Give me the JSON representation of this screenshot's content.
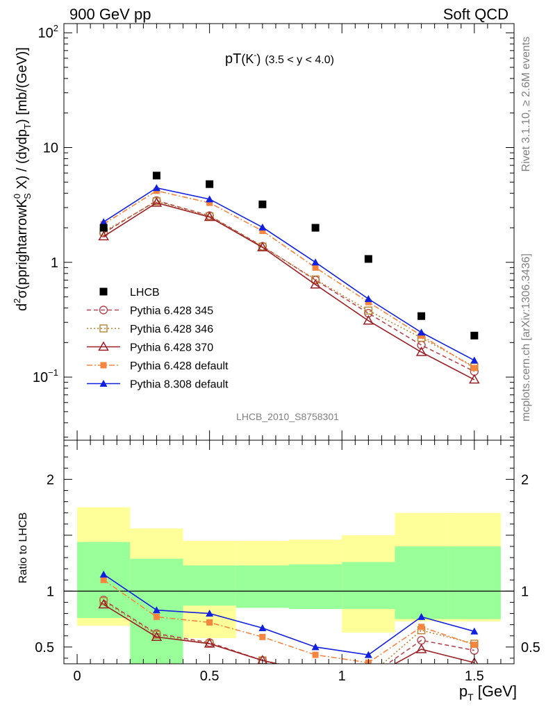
{
  "header": {
    "left": "900 GeV pp",
    "right": "Soft QCD"
  },
  "side": {
    "rivet": "Rivet 3.1.10, ≥ 2.6M events",
    "mcplots": "mcplots.cern.ch [arXiv:1306.3436]"
  },
  "chart_data": {
    "type": "line",
    "title_main": "pT",
    "title_particle": "(K",
    "title_particle_sup": "-",
    "title_particle_close": ")",
    "title_range": "(3.5 < y < 4.0)",
    "analysis_label": "LHCB_2010_S8758301",
    "ylabel_parts": [
      "d",
      "2",
      "σ(pprightarrowK",
      "0",
      "S",
      " X) / (dydp",
      "T",
      ") [mb/(GeV)]"
    ],
    "xlabel_parts": [
      "p",
      "T",
      " [GeV]"
    ],
    "ratio_ylabel": "Ratio to LHCB",
    "x_ticks": [
      "0",
      "0.5",
      "1",
      "1.5"
    ],
    "main_y_ticks": [
      "10^-1",
      "1",
      "10",
      "10^2"
    ],
    "main_y_tick_labels": {
      "m1_base": "10",
      "m1_exp": "−1",
      "one": "1",
      "ten": "10",
      "hundred_base": "10",
      "hundred_exp": "2"
    },
    "ratio_y_ticks": [
      "0.5",
      "1",
      "2"
    ],
    "xlim": [
      -0.05,
      1.65
    ],
    "main_ylim_log10": [
      -1.55,
      2.08
    ],
    "ratio_ylim": [
      0.35,
      2.35
    ],
    "x": [
      0.1,
      0.3,
      0.5,
      0.7,
      0.9,
      1.1,
      1.3,
      1.5
    ],
    "bin_edges": [
      0.0,
      0.2,
      0.4,
      0.6,
      0.8,
      1.0,
      1.2,
      1.4,
      1.6
    ],
    "data_series": {
      "name": "LHCB",
      "values": [
        2.0,
        5.7,
        4.8,
        3.2,
        2.0,
        1.07,
        0.34,
        0.23
      ]
    },
    "bands": {
      "yellow": [
        [
          0.69,
          1.75
        ],
        [
          0.35,
          1.56
        ],
        [
          0.58,
          1.45
        ],
        [
          0.85,
          1.45
        ],
        [
          0.84,
          1.46
        ],
        [
          0.63,
          1.5
        ],
        [
          0.73,
          1.7
        ],
        [
          0.73,
          1.7
        ]
      ],
      "green": [
        [
          0.76,
          1.44
        ],
        [
          0.35,
          1.29
        ],
        [
          0.87,
          1.23
        ],
        [
          0.85,
          1.23
        ],
        [
          0.84,
          1.24
        ],
        [
          0.84,
          1.26
        ],
        [
          0.75,
          1.4
        ],
        [
          0.75,
          1.4
        ]
      ]
    },
    "series": [
      {
        "name": "Pythia 6.428 345",
        "color": "#b5454f",
        "marker": "circle-open",
        "dash": "6,4",
        "values": [
          1.8,
          3.45,
          2.55,
          1.38,
          0.7,
          0.36,
          0.19,
          0.112
        ]
      },
      {
        "name": "Pythia 6.428 346",
        "color": "#b8822e",
        "marker": "square-open",
        "dash": "2,3",
        "values": [
          1.85,
          3.4,
          2.52,
          1.37,
          0.71,
          0.38,
          0.22,
          0.123
        ]
      },
      {
        "name": "Pythia 6.428 370",
        "color": "#9b1e24",
        "marker": "triangle-open",
        "dash": "",
        "values": [
          1.68,
          3.3,
          2.48,
          1.35,
          0.64,
          0.31,
          0.165,
          0.095
        ]
      },
      {
        "name": "Pythia 6.428 default",
        "color": "#f5853f",
        "marker": "square-filled",
        "dash": "8,3,2,3",
        "values": [
          2.15,
          4.2,
          3.3,
          1.88,
          0.9,
          0.45,
          0.23,
          0.12
        ]
      },
      {
        "name": "Pythia 8.308 default",
        "color": "#1020e0",
        "marker": "triangle-filled",
        "dash": "",
        "values": [
          2.25,
          4.45,
          3.55,
          2.02,
          1.0,
          0.48,
          0.245,
          0.14
        ]
      }
    ],
    "ratio_series": [
      {
        "name": "Pythia 6.428 345",
        "values": [
          0.92,
          0.62,
          0.54,
          0.38,
          0.27,
          0.23,
          0.56,
          0.47
        ]
      },
      {
        "name": "Pythia 6.428 346",
        "values": [
          0.91,
          0.61,
          0.53,
          0.38,
          0.28,
          0.24,
          0.65,
          0.53
        ]
      },
      {
        "name": "Pythia 6.428 370",
        "values": [
          0.88,
          0.59,
          0.53,
          0.38,
          0.27,
          0.22,
          0.48,
          0.36
        ]
      },
      {
        "name": "Pythia 6.428 default",
        "values": [
          1.1,
          0.77,
          0.72,
          0.59,
          0.43,
          0.36,
          0.68,
          0.52
        ]
      },
      {
        "name": "Pythia 8.308 default",
        "values": [
          1.15,
          0.83,
          0.8,
          0.67,
          0.5,
          0.43,
          0.77,
          0.64
        ]
      }
    ]
  }
}
